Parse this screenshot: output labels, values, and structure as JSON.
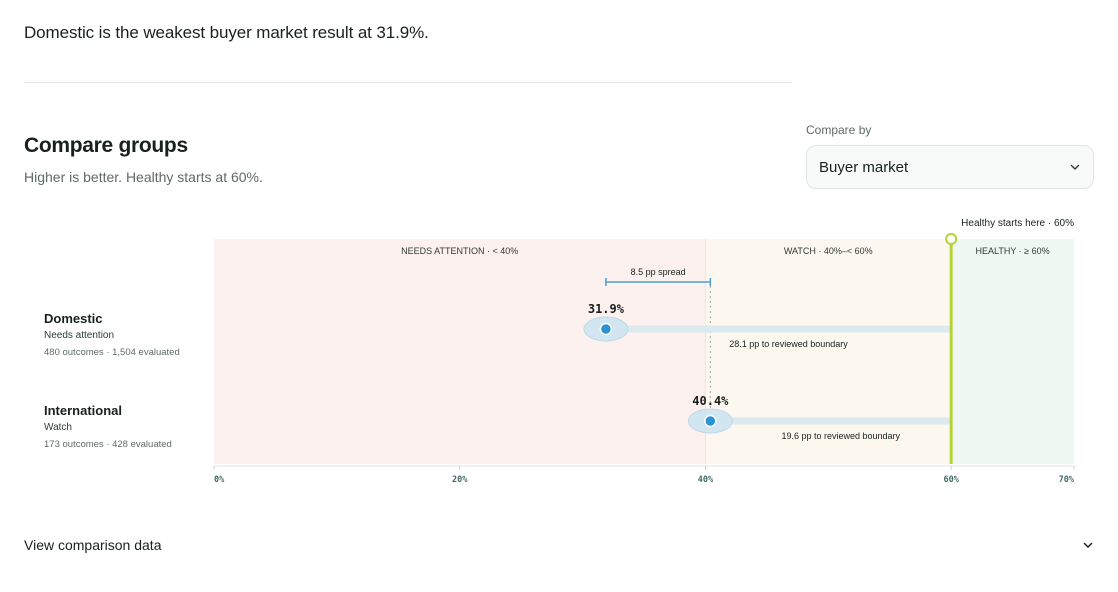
{
  "headline": "Domestic is the weakest buyer market result at 31.9%.",
  "section": {
    "title": "Compare groups",
    "subtitle": "Higher is better. Healthy starts at 60%."
  },
  "compare_by": {
    "label": "Compare by",
    "selected": "Buyer market",
    "icon": "chevron-down-icon"
  },
  "footer": {
    "label": "View comparison data",
    "icon": "chevron-down-icon"
  },
  "colors": {
    "needs_attention_zone": "#fdf1ef",
    "watch_zone": "#fcf8ef",
    "healthy_zone": "#eef7f2",
    "healthy_line": "#b5d334",
    "point": "#2b93d3",
    "spread": "#4a9fd1"
  },
  "chart_data": {
    "type": "dot",
    "xlim": [
      0,
      70
    ],
    "x_ticks": [
      0,
      20,
      40,
      60,
      70
    ],
    "x_tick_labels": [
      "0%",
      "20%",
      "40%",
      "60%",
      "70%"
    ],
    "threshold": {
      "value": 60,
      "label": "Healthy starts here · 60%"
    },
    "zones": [
      {
        "from": 0,
        "to": 40,
        "label": "NEEDS ATTENTION · < 40%",
        "key": "needs_attention_zone"
      },
      {
        "from": 40,
        "to": 60,
        "label": "WATCH · 40%–< 60%",
        "key": "watch_zone"
      },
      {
        "from": 60,
        "to": 70,
        "label": "HEALTHY · ≥ 60%",
        "key": "healthy_zone"
      }
    ],
    "spread": {
      "from": 31.9,
      "to": 40.4,
      "label": "8.5 pp spread"
    },
    "rows": [
      {
        "name": "Domestic",
        "status": "Needs attention",
        "meta": "480 outcomes · 1,504 evaluated",
        "value": 31.9,
        "value_label": "31.9%",
        "gap_label": "28.1 pp to reviewed boundary"
      },
      {
        "name": "International",
        "status": "Watch",
        "meta": "173 outcomes · 428 evaluated",
        "value": 40.4,
        "value_label": "40.4%",
        "gap_label": "19.6 pp to reviewed boundary"
      }
    ]
  }
}
